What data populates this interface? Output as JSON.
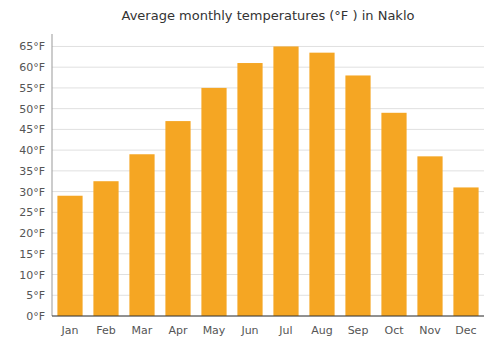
{
  "chart_data": {
    "type": "bar",
    "title": "Average monthly temperatures (°F ) in Naklo",
    "categories": [
      "Jan",
      "Feb",
      "Mar",
      "Apr",
      "May",
      "Jun",
      "Jul",
      "Aug",
      "Sep",
      "Oct",
      "Nov",
      "Dec"
    ],
    "values": [
      29,
      32.5,
      39,
      47,
      55,
      61,
      65,
      63.5,
      58,
      49,
      38.5,
      31
    ],
    "color": "#F5A623",
    "ylim": [
      0,
      68
    ],
    "yticks": [
      {
        "value": 0,
        "label": "0°F"
      },
      {
        "value": 5,
        "label": "5°F"
      },
      {
        "value": 10,
        "label": "10°F"
      },
      {
        "value": 15,
        "label": "15°F"
      },
      {
        "value": 20,
        "label": "20°F"
      },
      {
        "value": 25,
        "label": "25°F"
      },
      {
        "value": 30,
        "label": "30°F"
      },
      {
        "value": 35,
        "label": "35°F"
      },
      {
        "value": 40,
        "label": "40°F"
      },
      {
        "value": 45,
        "label": "45°F"
      },
      {
        "value": 50,
        "label": "50°F"
      },
      {
        "value": 55,
        "label": "55°F"
      },
      {
        "value": 60,
        "label": "60°F"
      },
      {
        "value": 65,
        "label": "65°F"
      }
    ],
    "grid": true
  }
}
